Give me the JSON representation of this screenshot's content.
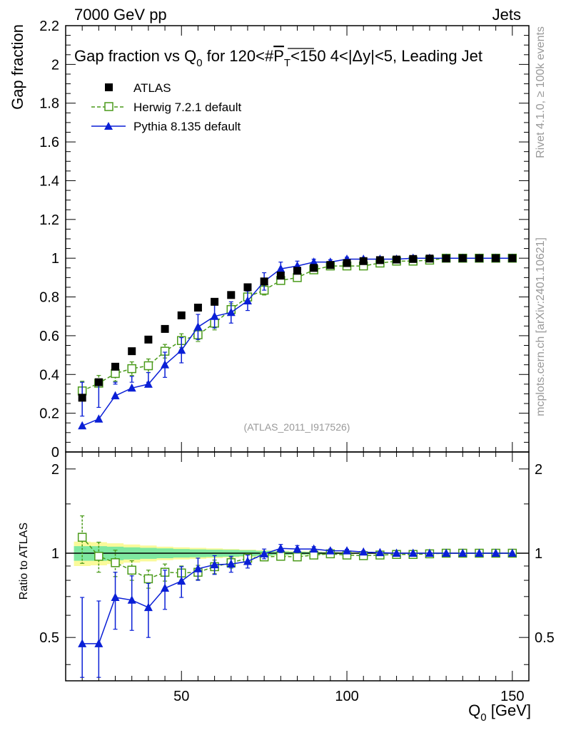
{
  "header": {
    "left": "7000 GeV pp",
    "right": "Jets",
    "title_prefix": "Gap fraction vs Q",
    "title_sub": "0",
    "title_mid": " for 120<#",
    "title_p": "P",
    "title_psub": "T",
    "title_suffix": "<150  4<|Δy|<5, Leading Jet"
  },
  "side_labels": {
    "rivet": "Rivet 4.1.0, ≥ 100k events",
    "mcplots": "mcplots.cern.ch [arXiv:2401.10621]"
  },
  "analysis_id": "(ATLAS_2011_I917526)",
  "legend": {
    "atlas": "ATLAS",
    "herwig": "Herwig 7.2.1 default",
    "pythia": "Pythia 8.135 default"
  },
  "axes": {
    "ylabel_main": "Gap fraction",
    "ylabel_ratio": "Ratio to ATLAS",
    "xlabel_main": "Q",
    "xlabel_sub": "0",
    "xlabel_unit": " [GeV]"
  },
  "colors": {
    "atlas": "#000000",
    "herwig": "#4a9a1a",
    "pythia": "#0a1fd6",
    "band_inner": "#7ee8a0",
    "band_outer": "#fafa9a"
  },
  "chart_data": {
    "type": "line",
    "title": "Gap fraction vs Q0 for 120<#PT<150 4<|Δy|<5, Leading Jet",
    "xlabel": "Q0 [GeV]",
    "ylabel": "Gap fraction",
    "xlim": [
      15,
      155
    ],
    "ylim": [
      0,
      2.2
    ],
    "ratio_ylim": [
      0.35,
      2.3
    ],
    "x_ticks": [
      50,
      100,
      150
    ],
    "y_ticks": [
      0,
      0.2,
      0.4,
      0.6,
      0.8,
      1,
      1.2,
      1.4,
      1.6,
      1.8,
      2,
      2.2
    ],
    "ratio_ticks": [
      0.5,
      1,
      2
    ],
    "x": [
      20,
      25,
      30,
      35,
      40,
      45,
      50,
      55,
      60,
      65,
      70,
      75,
      80,
      85,
      90,
      95,
      100,
      105,
      110,
      115,
      120,
      125,
      130,
      135,
      140,
      145,
      150
    ],
    "series": [
      {
        "name": "ATLAS",
        "values": [
          0.28,
          0.36,
          0.44,
          0.52,
          0.58,
          0.635,
          0.705,
          0.745,
          0.775,
          0.81,
          0.85,
          0.88,
          0.91,
          0.935,
          0.95,
          0.965,
          0.975,
          0.985,
          0.99,
          0.993,
          0.996,
          0.998,
          0.999,
          1.0,
          1.0,
          1.0,
          1.0
        ]
      },
      {
        "name": "Herwig 7.2.1 default",
        "values": [
          0.315,
          0.355,
          0.405,
          0.43,
          0.445,
          0.52,
          0.575,
          0.605,
          0.665,
          0.735,
          0.8,
          0.835,
          0.885,
          0.9,
          0.94,
          0.96,
          0.96,
          0.96,
          0.975,
          0.985,
          0.985,
          0.99,
          1.0,
          1.0,
          1.0,
          1.0,
          1.0
        ],
        "errors": [
          0.05,
          0.04,
          0.04,
          0.035,
          0.035,
          0.035,
          0.035,
          0.035,
          0.035,
          0.03,
          0.03,
          0.025,
          0.02,
          0.02,
          0.015,
          0.01,
          0.01,
          0.01,
          0.008,
          0.006,
          0.005,
          0.004,
          0.003,
          0.002,
          0.002,
          0.002,
          0.002
        ]
      },
      {
        "name": "Pythia 8.135 default",
        "values": [
          0.135,
          0.17,
          0.29,
          0.33,
          0.35,
          0.45,
          0.525,
          0.645,
          0.7,
          0.72,
          0.78,
          0.88,
          0.945,
          0.96,
          0.98,
          0.98,
          0.995,
          0.995,
          0.995,
          0.995,
          1.0,
          1.0,
          1.0,
          1.0,
          1.0,
          1.0,
          1.0
        ],
        "errors": [
          0.05,
          0.06,
          0.06,
          0.06,
          0.06,
          0.065,
          0.065,
          0.065,
          0.06,
          0.055,
          0.05,
          0.045,
          0.035,
          0.025,
          0.015,
          0.012,
          0.01,
          0.008,
          0.006,
          0.005,
          0.004,
          0.003,
          0.002,
          0.002,
          0.002,
          0.002,
          0.002
        ]
      }
    ],
    "ratio": {
      "herwig": [
        1.14,
        0.975,
        0.925,
        0.87,
        0.81,
        0.855,
        0.85,
        0.855,
        0.895,
        0.925,
        0.96,
        0.97,
        0.975,
        0.97,
        0.985,
        0.995,
        0.985,
        0.98,
        0.985,
        0.99,
        0.99,
        0.995,
        1.0,
        1.0,
        1.0,
        1.0,
        1.0
      ],
      "herwig_err": [
        0.22,
        0.12,
        0.1,
        0.07,
        0.06,
        0.06,
        0.05,
        0.05,
        0.05,
        0.04,
        0.035,
        0.03,
        0.025,
        0.02,
        0.015,
        0.012,
        0.01,
        0.01,
        0.008,
        0.006,
        0.005,
        0.004,
        0.003,
        0.002,
        0.002,
        0.002,
        0.002
      ],
      "pythia": [
        0.475,
        0.475,
        0.695,
        0.68,
        0.64,
        0.75,
        0.795,
        0.88,
        0.91,
        0.915,
        0.935,
        0.995,
        1.04,
        1.035,
        1.035,
        1.02,
        1.02,
        1.01,
        1.005,
        1.0,
        1.0,
        1.0,
        1.0,
        1.0,
        1.0,
        1.0,
        1.0
      ],
      "pythia_err": [
        0.22,
        0.2,
        0.16,
        0.15,
        0.14,
        0.12,
        0.1,
        0.08,
        0.07,
        0.06,
        0.05,
        0.04,
        0.035,
        0.03,
        0.02,
        0.015,
        0.012,
        0.01,
        0.008,
        0.006,
        0.005,
        0.004,
        0.003,
        0.002,
        0.002,
        0.002,
        0.002
      ],
      "band_inner": [
        0.06,
        0.06,
        0.055,
        0.05,
        0.045,
        0.04,
        0.035,
        0.032,
        0.03,
        0.028,
        0.025,
        0.02,
        0.015,
        0.012,
        0.01,
        0.008,
        0.006,
        0.005,
        0.004,
        0.003,
        0.003,
        0.002,
        0.002,
        0.002,
        0.002,
        0.002,
        0.002
      ],
      "band_outer": [
        0.1,
        0.095,
        0.085,
        0.075,
        0.065,
        0.055,
        0.05,
        0.045,
        0.04,
        0.035,
        0.03,
        0.025,
        0.02,
        0.016,
        0.013,
        0.01,
        0.008,
        0.006,
        0.005,
        0.004,
        0.003,
        0.003,
        0.002,
        0.002,
        0.002,
        0.002,
        0.002
      ]
    }
  }
}
